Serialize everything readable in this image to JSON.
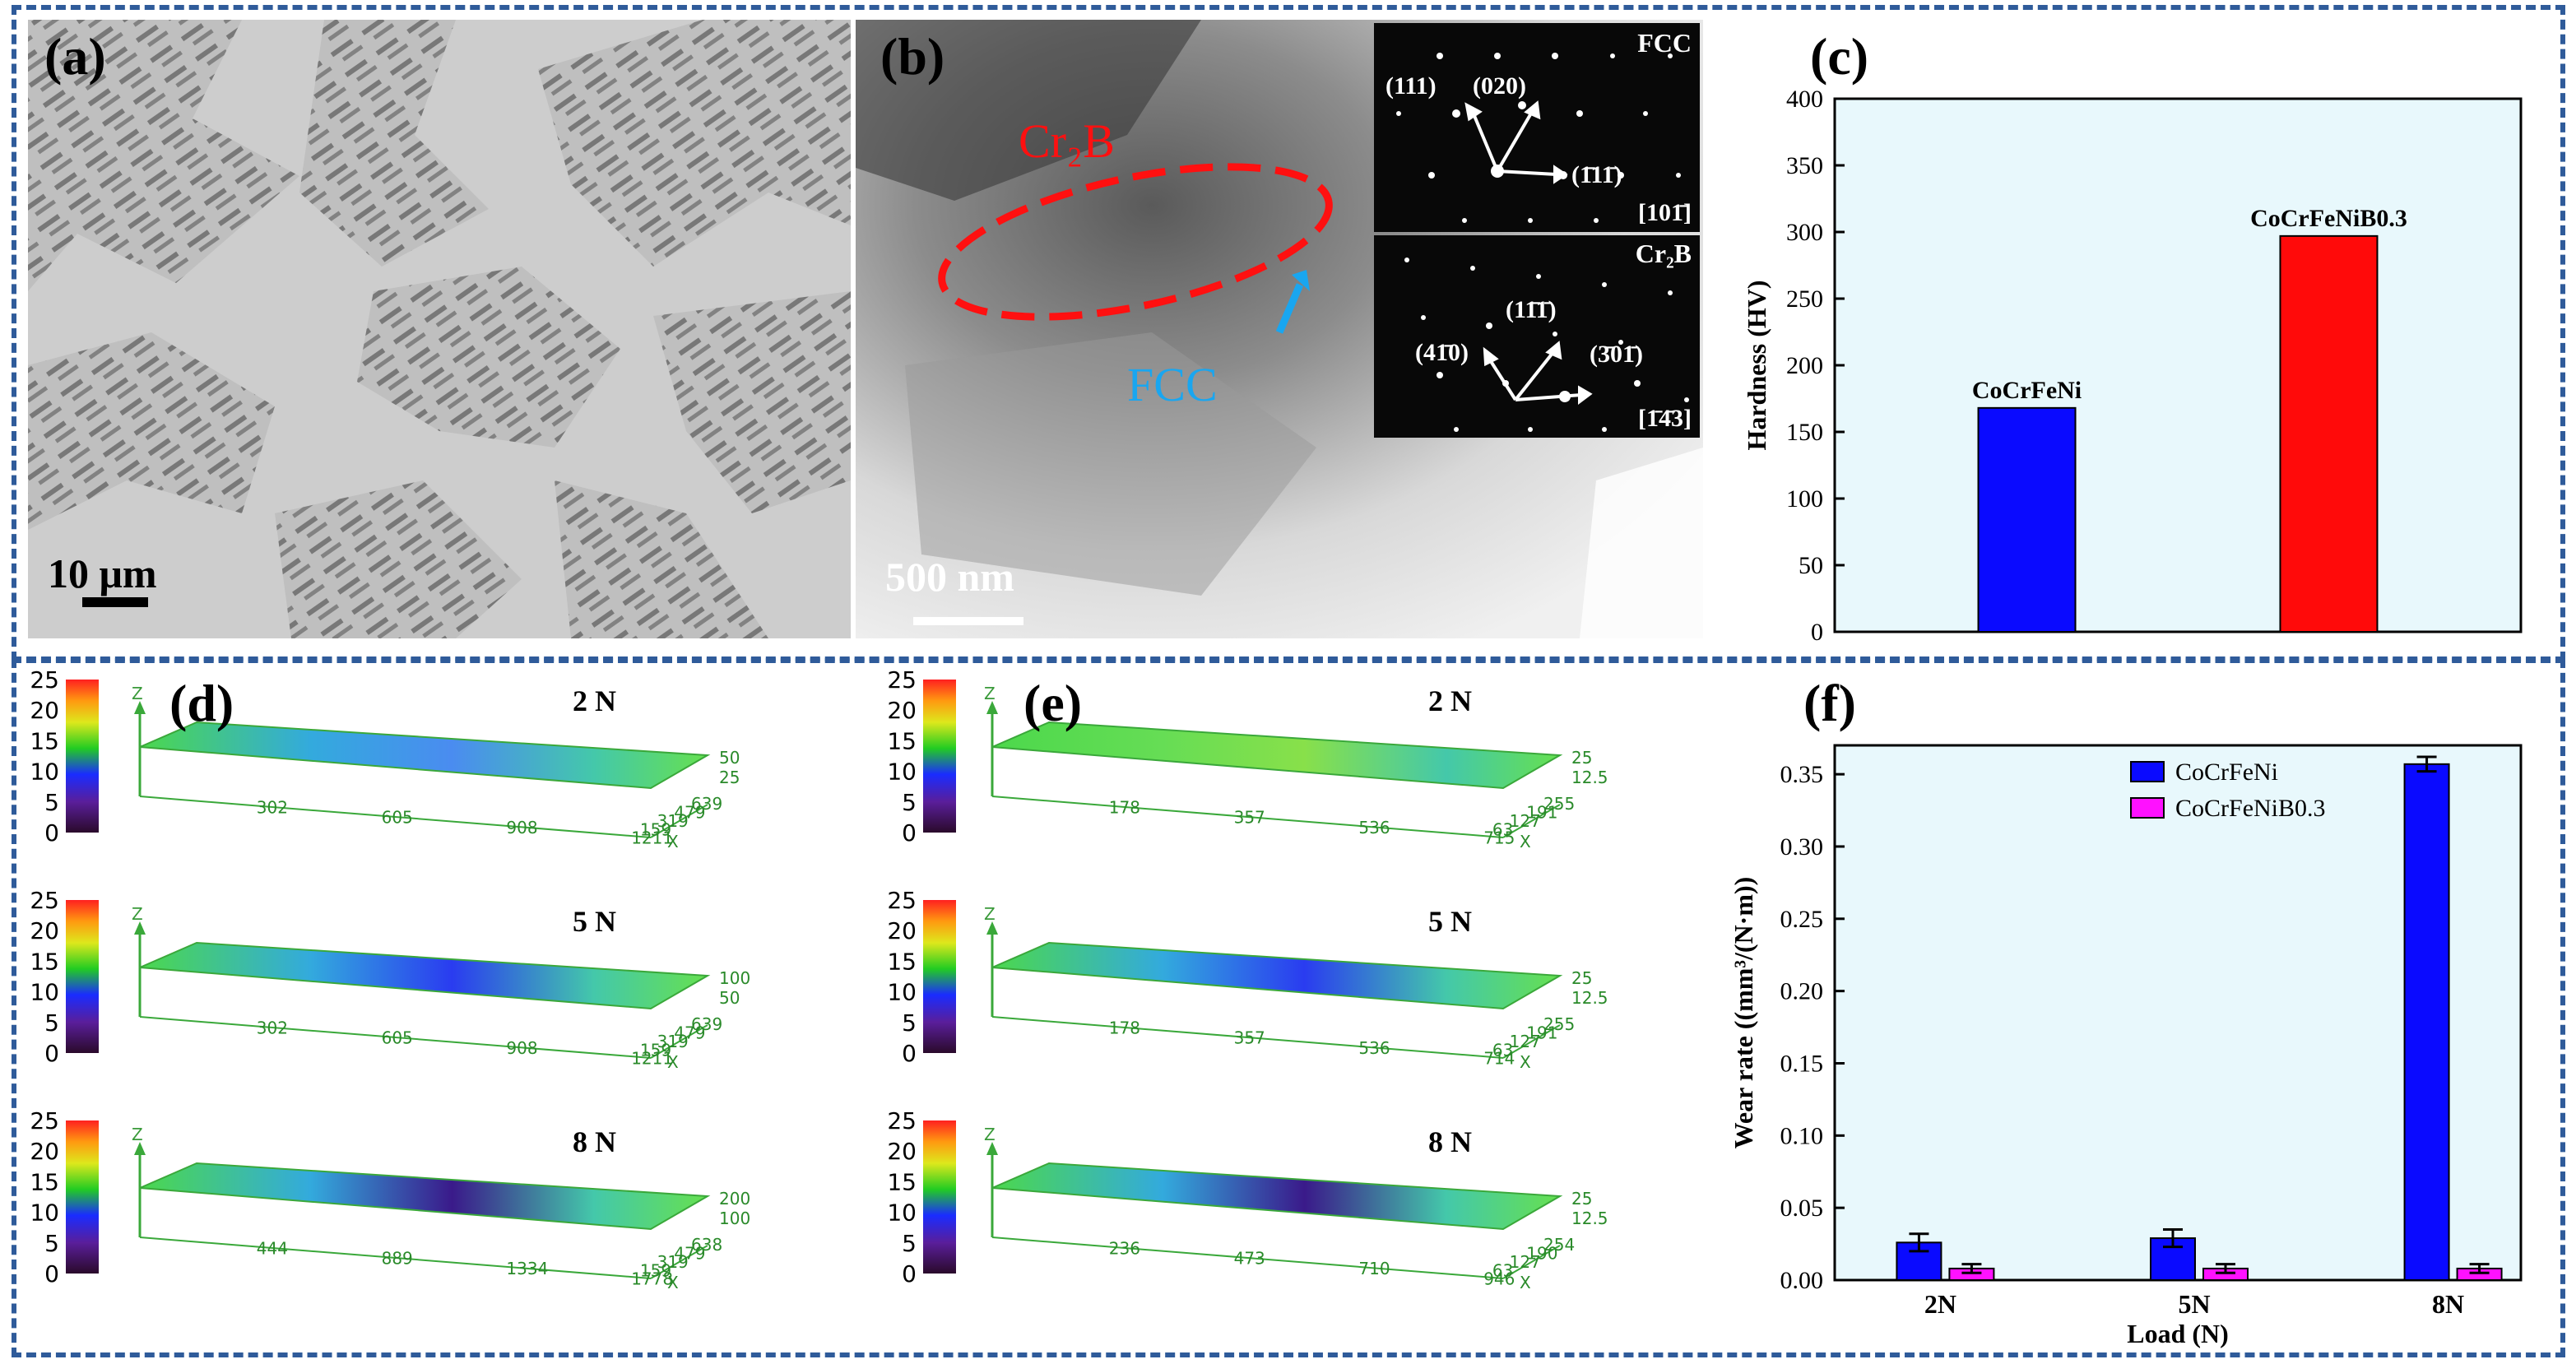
{
  "panels": {
    "a": {
      "label": "(a)",
      "scale": "10 μm"
    },
    "b": {
      "label": "(b)",
      "scale": "500 nm",
      "cr2b_label": "Cr₂B",
      "fcc_label": "FCC",
      "inset_fcc": {
        "title": "FCC",
        "spots": [
          "(111)",
          "(020)",
          "(1̄11̄)"
        ],
        "zone": "[101̄]"
      },
      "inset_cr2b": {
        "title": "Cr₂B",
        "spots": [
          "(41̄0)",
          "(11̄1̄)",
          "(3̄01̄)"
        ],
        "zone": "[1̄4̄3]"
      }
    },
    "c": {
      "label": "(c)"
    },
    "d": {
      "label": "(d)"
    },
    "e": {
      "label": "(e)"
    },
    "f": {
      "label": "(f)"
    }
  },
  "chart_data": [
    {
      "id": "c",
      "type": "bar",
      "categories": [
        "CoCrFeNi",
        "CoCrFeNiB0.3"
      ],
      "values": [
        168,
        297
      ],
      "colors": [
        "#0a0aff",
        "#ff0a0a"
      ],
      "ylabel": "Hardness (HV)",
      "ylim": [
        0,
        400
      ],
      "yticks": [
        "0",
        "50",
        "100",
        "150",
        "200",
        "250",
        "300",
        "350",
        "400"
      ]
    },
    {
      "id": "f",
      "type": "bar",
      "categories": [
        "2N",
        "5N",
        "8N"
      ],
      "xlabel": "Load (N)",
      "ylabel": "Wear rate ((mm³/(N·m))",
      "ylim": [
        0,
        0.37
      ],
      "yticks": [
        "0.00",
        "0.05",
        "0.10",
        "0.15",
        "0.20",
        "0.25",
        "0.30",
        "0.35"
      ],
      "series": [
        {
          "name": "CoCrFeNi",
          "color": "#0a0aff",
          "values": [
            0.026,
            0.029,
            0.357
          ],
          "errors": [
            0.006,
            0.006,
            0.005
          ]
        },
        {
          "name": "CoCrFeNiB0.3",
          "color": "#ff11ff",
          "values": [
            0.008,
            0.008,
            0.008
          ],
          "errors": [
            0.003,
            0.003,
            0.003
          ]
        }
      ]
    }
  ],
  "profiles_d": [
    {
      "load": "2 N",
      "x_ticks": [
        "302",
        "605",
        "908",
        "1211"
      ],
      "y_ticks": [
        "159",
        "319",
        "479",
        "639"
      ],
      "z_side": [
        "50",
        "25"
      ],
      "depth": 0.25
    },
    {
      "load": "5 N",
      "x_ticks": [
        "302",
        "605",
        "908",
        "1211"
      ],
      "y_ticks": [
        "159",
        "319",
        "479",
        "639"
      ],
      "z_side": [
        "100",
        "50"
      ],
      "depth": 0.55
    },
    {
      "load": "8 N",
      "x_ticks": [
        "444",
        "889",
        "1334",
        "1778"
      ],
      "y_ticks": [
        "159",
        "319",
        "479",
        "638"
      ],
      "z_side": [
        "200",
        "100"
      ],
      "depth": 0.95
    }
  ],
  "profiles_e": [
    {
      "load": "2 N",
      "x_ticks": [
        "178",
        "357",
        "536",
        "715"
      ],
      "y_ticks": [
        "63",
        "127",
        "191",
        "255"
      ],
      "z_side": [
        "25",
        "12.5"
      ],
      "depth": 0.05
    },
    {
      "load": "5 N",
      "x_ticks": [
        "178",
        "357",
        "536",
        "714"
      ],
      "y_ticks": [
        "63",
        "127",
        "191",
        "255"
      ],
      "z_side": [
        "25",
        "12.5"
      ],
      "depth": 0.45
    },
    {
      "load": "8 N",
      "x_ticks": [
        "236",
        "473",
        "710",
        "946"
      ],
      "y_ticks": [
        "63",
        "127",
        "190",
        "254"
      ],
      "z_side": [
        "25",
        "12.5"
      ],
      "depth": 0.75
    }
  ],
  "colorbar": {
    "ticks": [
      "0",
      "5",
      "10",
      "15",
      "20",
      "25"
    ],
    "axis": "Z",
    "x_axis": "X"
  }
}
